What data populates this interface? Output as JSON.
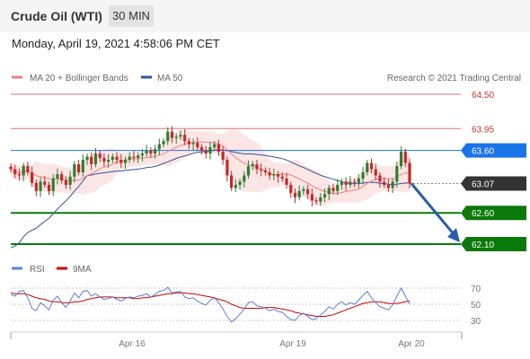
{
  "header": {
    "instrument": "Crude Oil (WTI)",
    "timeframe": "30 MIN",
    "datetime": "Monday, April 19, 2021 4:58:06 PM CET"
  },
  "legend": {
    "ma20": {
      "label": "MA 20 + Bollinger Bands",
      "color": "#f08080"
    },
    "ma50": {
      "label": "MA 50",
      "color": "#2e5597"
    }
  },
  "credit": "Research © 2021 Trading Central",
  "rsi_legend": {
    "rsi": {
      "label": "RSI",
      "color": "#5b7fd6"
    },
    "ma9": {
      "label": "9MA",
      "color": "#cc0000"
    }
  },
  "colors": {
    "up": "#5cb85c",
    "down": "#e86c6c",
    "candle_up": "#2e7d32",
    "candle_down": "#c62828",
    "blue_level": "#1a73e8",
    "green_level": "#0a7a0a",
    "red_level": "#e07070",
    "current": "#333333",
    "arrow": "#2a5ea8"
  },
  "chart_data": [
    {
      "type": "candlestick",
      "title": "Crude Oil (WTI)",
      "timeframe": "30 MIN",
      "ylim": [
        61.9,
        64.75
      ],
      "x_labels": [
        "Apr 16",
        "Apr 19",
        "Apr 20"
      ],
      "levels": [
        {
          "value": 64.5,
          "label": "64.50",
          "kind": "resistance"
        },
        {
          "value": 63.95,
          "label": "63.95",
          "kind": "resistance"
        },
        {
          "value": 63.6,
          "label": "63.60",
          "kind": "pivot"
        },
        {
          "value": 63.07,
          "label": "63.07",
          "kind": "current"
        },
        {
          "value": 62.6,
          "label": "62.60",
          "kind": "support"
        },
        {
          "value": 62.1,
          "label": "62.10",
          "kind": "support"
        }
      ],
      "forecast": {
        "from": 63.07,
        "to": 62.1,
        "direction": "down"
      },
      "close": [
        63.3,
        63.22,
        63.2,
        63.35,
        63.25,
        63.08,
        62.95,
        63.1,
        63.05,
        62.95,
        63.15,
        63.22,
        63.12,
        63.05,
        63.18,
        63.38,
        63.25,
        63.45,
        63.5,
        63.38,
        63.55,
        63.48,
        63.42,
        63.45,
        63.5,
        63.45,
        63.4,
        63.45,
        63.5,
        63.48,
        63.52,
        63.55,
        63.6,
        63.55,
        63.62,
        63.7,
        63.75,
        63.9,
        63.8,
        63.82,
        63.85,
        63.75,
        63.7,
        63.72,
        63.65,
        63.6,
        63.55,
        63.65,
        63.7,
        63.58,
        63.45,
        63.2,
        63.0,
        63.05,
        63.1,
        63.2,
        63.35,
        63.38,
        63.3,
        63.28,
        63.25,
        63.2,
        63.22,
        63.18,
        63.15,
        63.05,
        62.92,
        62.85,
        62.95,
        62.98,
        62.9,
        62.8,
        62.78,
        62.85,
        62.9,
        63.0,
        62.95,
        63.05,
        63.1,
        63.05,
        63.1,
        63.08,
        63.15,
        63.25,
        63.4,
        63.3,
        63.2,
        63.1,
        63.05,
        63.0,
        63.1,
        63.35,
        63.58,
        63.4,
        63.07
      ]
    },
    {
      "type": "line",
      "title": "RSI",
      "ylim": [
        25,
        75
      ],
      "y_ticks": [
        30,
        50,
        70
      ],
      "series": [
        {
          "name": "RSI",
          "values": [
            62,
            60,
            66,
            67,
            58,
            45,
            42,
            52,
            48,
            43,
            55,
            60,
            52,
            46,
            54,
            64,
            58,
            66,
            67,
            60,
            63,
            59,
            56,
            57,
            59,
            56,
            54,
            57,
            59,
            58,
            60,
            61,
            63,
            59,
            62,
            66,
            67,
            71,
            64,
            65,
            66,
            59,
            57,
            58,
            54,
            51,
            49,
            55,
            58,
            52,
            44,
            35,
            28,
            32,
            38,
            44,
            52,
            53,
            48,
            47,
            45,
            42,
            44,
            41,
            40,
            35,
            31,
            30,
            36,
            39,
            35,
            31,
            32,
            37,
            41,
            47,
            44,
            50,
            53,
            49,
            52,
            50,
            55,
            61,
            66,
            58,
            52,
            47,
            45,
            43,
            49,
            60,
            70,
            60,
            50
          ]
        },
        {
          "name": "9MA",
          "values": [
            64,
            63,
            63,
            63,
            62,
            60,
            58,
            57,
            56,
            54,
            53,
            53,
            52,
            52,
            52,
            53,
            53,
            54,
            56,
            57,
            58,
            59,
            59,
            59,
            59,
            58,
            58,
            58,
            58,
            57,
            57,
            58,
            58,
            59,
            60,
            61,
            62,
            63,
            63,
            64,
            64,
            64,
            63,
            63,
            62,
            61,
            60,
            59,
            58,
            56,
            55,
            53,
            50,
            48,
            46,
            45,
            45,
            45,
            45,
            45,
            46,
            46,
            46,
            45,
            44,
            43,
            42,
            40,
            39,
            38,
            37,
            36,
            35,
            35,
            35,
            36,
            37,
            39,
            41,
            43,
            45,
            47,
            49,
            51,
            52,
            53,
            53,
            53,
            52,
            51,
            51,
            51,
            52,
            53,
            54
          ]
        }
      ]
    }
  ]
}
